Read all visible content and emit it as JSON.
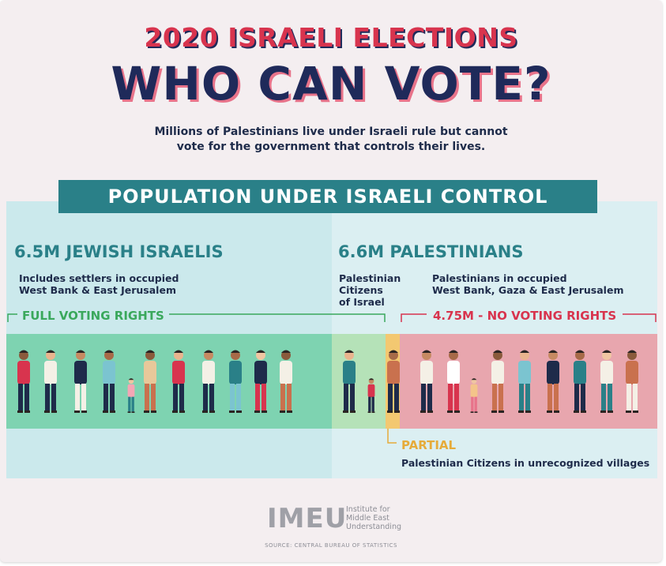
{
  "title": {
    "line1": "2020 ISRAELI ELECTIONS",
    "line2": "WHO CAN VOTE?"
  },
  "subtitle": {
    "line1": "Millions of Palestinians live under Israeli rule but cannot",
    "line2": "vote for the government that controls their lives."
  },
  "banner": "POPULATION UNDER ISRAELI CONTROL",
  "left": {
    "heading": "6.5M JEWISH ISRAELIS",
    "desc_line1": "Includes settlers in occupied",
    "desc_line2": "West Bank & East Jerusalem",
    "rights": "FULL VOTING RIGHTS"
  },
  "right": {
    "heading": "6.6M PALESTINIANS",
    "citizens_line1": "Palestinian",
    "citizens_line2": "Citizens",
    "citizens_line3": "of Israel",
    "occupied_line1": "Palestinians in occupied",
    "occupied_line2": "West Bank, Gaza & East Jerusalem",
    "rights": "4.75M - NO VOTING RIGHTS"
  },
  "partial": {
    "label": "PARTIAL",
    "desc": "Palestinian Citizens in unrecognized villages"
  },
  "logo": {
    "mark": "IMEU",
    "line1": "Institute for",
    "line2": "Middle East",
    "line3": "Understanding"
  },
  "source": "SOURCE: CENTRAL BUREAU OF STATISTICS",
  "colors": {
    "teal": "#2a8088",
    "green": "#7ed3b1",
    "light_green": "#b5e2b8",
    "yellow": "#f3c871",
    "pink": "#e8a6ae",
    "red": "#d8344e",
    "navy": "#1f2a5a"
  },
  "figures": {
    "left": [
      {
        "shirt": "#d8344e",
        "pants": "#1e2b4a"
      },
      {
        "shirt": "#f4f0e6",
        "pants": "#1e2b4a"
      },
      {
        "shirt": "#1e2b4a",
        "pants": "#f4f0e6"
      },
      {
        "shirt": "#7bc4d0",
        "pants": "#1e2b4a"
      },
      {
        "shirt": "#f4a6b5",
        "pants": "#2a8088"
      },
      {
        "shirt": "#e8c89a",
        "pants": "#c9714e"
      },
      {
        "shirt": "#d8344e",
        "pants": "#1e2b4a"
      },
      {
        "shirt": "#f4f0e6",
        "pants": "#1e2b4a"
      },
      {
        "shirt": "#2a8088",
        "pants": "#7bc4d0"
      },
      {
        "shirt": "#1e2b4a",
        "pants": "#d8344e"
      },
      {
        "shirt": "#f4f0e6",
        "pants": "#c9714e"
      }
    ],
    "citizens": [
      {
        "shirt": "#2a8088",
        "pants": "#1e2b4a"
      },
      {
        "shirt": "#d8344e",
        "pants": "#1e2b4a"
      }
    ],
    "partial": [
      {
        "shirt": "#c9714e",
        "pants": "#1e2b4a"
      }
    ],
    "occupied": [
      {
        "shirt": "#f4f0e6",
        "pants": "#1e2b4a"
      },
      {
        "shirt": "#ffffff",
        "pants": "#d8344e"
      },
      {
        "shirt": "#f4c48a",
        "pants": "#e8738a"
      },
      {
        "shirt": "#f4f0e6",
        "pants": "#c9714e"
      },
      {
        "shirt": "#7bc4d0",
        "pants": "#2a8088"
      },
      {
        "shirt": "#1e2b4a",
        "pants": "#c9714e"
      },
      {
        "shirt": "#2a8088",
        "pants": "#1e2b4a"
      },
      {
        "shirt": "#f4f0e6",
        "pants": "#2a8088"
      },
      {
        "shirt": "#c9714e",
        "pants": "#f4f0e6"
      }
    ]
  }
}
